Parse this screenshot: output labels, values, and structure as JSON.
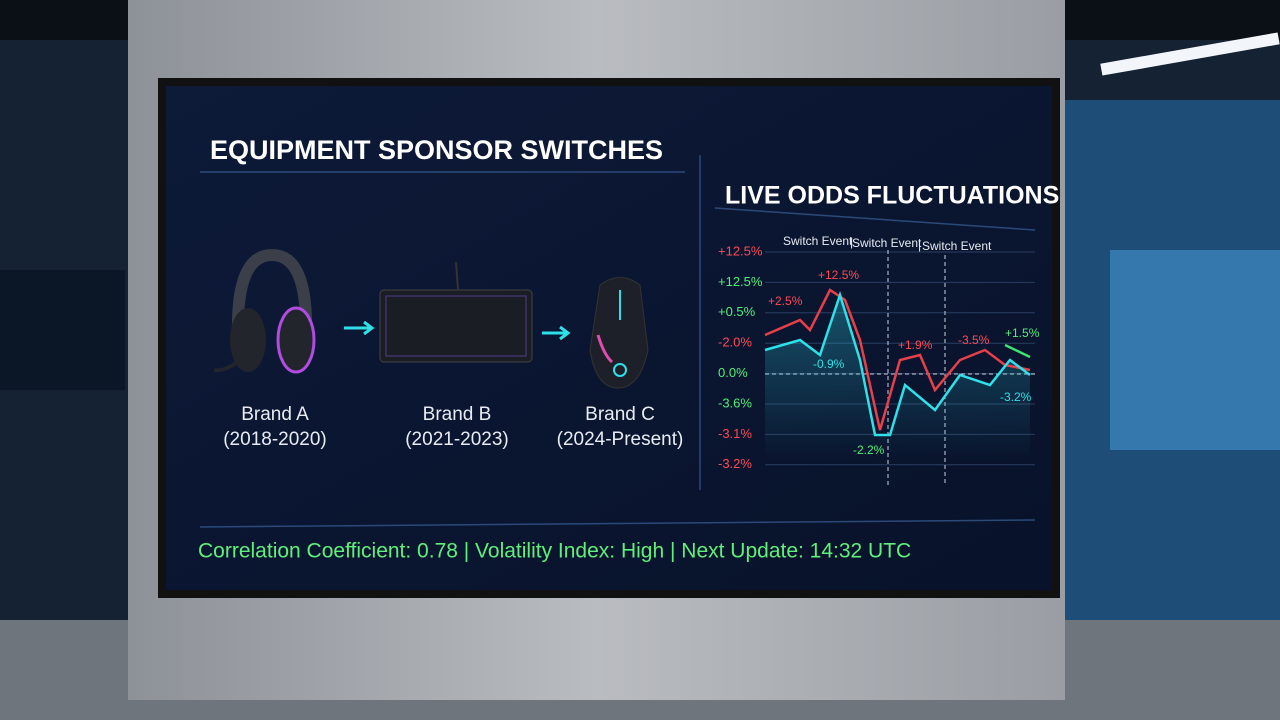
{
  "left_panel": {
    "title": "EQUIPMENT SPONSOR SWITCHES",
    "items": [
      {
        "name": "Brand A",
        "period": "(2018-2020)"
      },
      {
        "name": "Brand B",
        "period": "(2021-2023)"
      },
      {
        "name": "Brand C",
        "period": "(2024-Present)"
      }
    ]
  },
  "right_panel": {
    "title": "LIVE ODDS FLUCTUATIONS",
    "event_labels": [
      "Switch Event",
      "Switch Event",
      "Switch Event"
    ],
    "axis_labels": [
      "+12.5%",
      "+12.5%",
      "+0.5%",
      "-2.0%",
      "0.0%",
      "-3.6%",
      "-3.1%",
      "-3.2%"
    ],
    "annotations": [
      "+2.5%",
      "+12.5%",
      "-0.9%",
      "+1.9%",
      "-3.5%",
      "+1.5%",
      "-3.2%",
      "-2.2%"
    ]
  },
  "footer": "Correlation Coefficient: 0.78 | Volatility Index: High | Next Update: 14:32 UTC"
}
